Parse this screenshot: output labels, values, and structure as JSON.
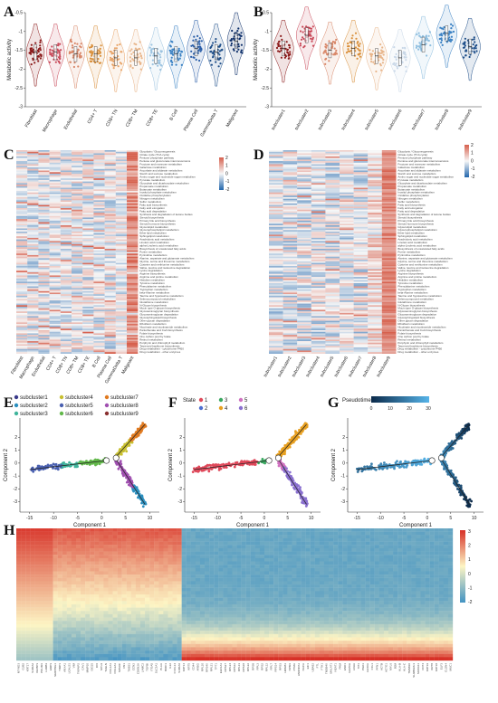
{
  "colors": {
    "neg": "#2166ac",
    "mid": "#f7f7f7",
    "pos": "#d6604d",
    "hneg": "#4393c3",
    "hmid": "#fdf5c4",
    "hpos": "#d73027"
  },
  "chart_data": [
    {
      "panel": "A",
      "type": "violin",
      "ylabel": "Metabolic activity",
      "ylim": [
        -3,
        -0.5
      ],
      "yticks": [
        -3,
        -2.5,
        -2,
        -1.5,
        -1,
        -0.5
      ],
      "categories": [
        "Fibroblast",
        "Macrophage",
        "Endothelial",
        "CD4+ T",
        "CD8+ TN",
        "CD8+ TM",
        "CD8+ TE",
        "B Cell",
        "Plasma Cell",
        "GammaDelta T",
        "Malignant"
      ],
      "colors": [
        "#8b1a1a",
        "#c94a5a",
        "#d9886a",
        "#d98f3a",
        "#e8a56a",
        "#e8b58a",
        "#9cc3e0",
        "#3b82c4",
        "#2a5ea8",
        "#1f4f8a",
        "#0d2f6a"
      ],
      "medians": [
        -1.55,
        -1.55,
        -1.6,
        -1.6,
        -1.7,
        -1.7,
        -1.65,
        -1.6,
        -1.45,
        -1.55,
        -1.25
      ]
    },
    {
      "panel": "B",
      "type": "violin",
      "ylabel": "Metabolic activity",
      "ylim": [
        -3,
        -0.5
      ],
      "yticks": [
        -3,
        -2.5,
        -2,
        -1.5,
        -1,
        -0.5
      ],
      "categories": [
        "subcluster1",
        "subcluster2",
        "subcluster3",
        "subcluster4",
        "subcluster5",
        "subcluster6",
        "subcluster7",
        "subcluster8",
        "subcluster9"
      ],
      "colors": [
        "#8b1a1a",
        "#c94a5a",
        "#d9886a",
        "#d98f3a",
        "#e8b58a",
        "#c9d8e8",
        "#8fbfe0",
        "#3b82c4",
        "#1f4f8a"
      ],
      "medians": [
        -1.45,
        -1.1,
        -1.5,
        -1.45,
        -1.65,
        -1.7,
        -1.35,
        -1.05,
        -1.4
      ]
    },
    {
      "panel": "C",
      "type": "heatmap",
      "columns": [
        "Fibroblast",
        "Macrophage",
        "Endothelial",
        "CD4+ T",
        "CD8+ TN",
        "CD8+ TM",
        "CD8+ TE",
        "B Cell",
        "Plasma Cell",
        "GammaDelta T",
        "Malignant"
      ],
      "scale": [
        -2,
        -1,
        0,
        1,
        2
      ],
      "rows": [
        "Glycolysis / Gluconeogenesis",
        "Citrate cycle (TCA cycle)",
        "Pentose phosphate pathway",
        "Pentose and glucuronate interconversions",
        "Fructose and mannose metabolism",
        "Galactose metabolism",
        "Ascorbate and aldarate metabolism",
        "Starch and sucrose metabolism",
        "Amino sugar and nucleotide sugar metabolism",
        "Pyruvate metabolism",
        "Glyoxylate and dicarboxylate metabolism",
        "Propanoate metabolism",
        "Butanoate metabolism",
        "Inositol phosphate metabolism",
        "Oxidative phosphorylation",
        "Nitrogen metabolism",
        "Sulfur metabolism",
        "Fatty acid biosynthesis",
        "Fatty acid elongation",
        "Fatty acid degradation",
        "Synthesis and degradation of ketone bodies",
        "Steroid biosynthesis",
        "Primary bile acid biosynthesis",
        "Steroid hormone biosynthesis",
        "Glycerolipid metabolism",
        "Glycerophospholipid metabolism",
        "Ether lipid metabolism",
        "Sphingolipid metabolism",
        "Arachidonic acid metabolism",
        "Linoleic acid metabolism",
        "alpha-Linolenic acid metabolism",
        "Biosynthesis of unsaturated fatty acids",
        "Purine metabolism",
        "Pyrimidine metabolism",
        "Alanine, aspartate and glutamate metabolism",
        "Glycine, serine and threonine metabolism",
        "Cysteine and methionine metabolism",
        "Valine, leucine and isoleucine degradation",
        "Lysine degradation",
        "Arginine biosynthesis",
        "Arginine and proline metabolism",
        "Histidine metabolism",
        "Tyrosine metabolism",
        "Phenylalanine metabolism",
        "Tryptophan metabolism",
        "beta-Alanine metabolism",
        "Taurine and hypotaurine metabolism",
        "Selenocompound metabolism",
        "Glutathione metabolism",
        "N-Glycan biosynthesis",
        "Mucin type O-glycan biosynthesis",
        "Glycosaminoglycan biosynthesis",
        "Glycosaminoglycan degradation",
        "Glycosphingolipid biosynthesis",
        "Other glycan degradation",
        "Riboflavin metabolism",
        "Nicotinate and nicotinamide metabolism",
        "Pantothenate and CoA biosynthesis",
        "Folate biosynthesis",
        "One carbon pool by folate",
        "Retinol metabolism",
        "Porphyrin and chlorophyll metabolism",
        "Terpenoid backbone biosynthesis",
        "Drug metabolism - cytochrome P450",
        "Drug metabolism - other enzymes"
      ],
      "values": [
        [
          0.2,
          -0.6,
          0.1,
          -0.4,
          -0.3,
          -0.5,
          0.0,
          -0.2,
          0.4,
          -0.3,
          1.9
        ],
        [
          -0.4,
          0.3,
          -0.5,
          0.1,
          -0.2,
          -0.1,
          -0.6,
          0.0,
          0.5,
          -0.3,
          1.6
        ],
        [
          0.5,
          -0.2,
          0.4,
          -0.6,
          0.2,
          -0.4,
          -0.1,
          0.3,
          -0.5,
          -0.2,
          1.4
        ],
        [
          -0.1,
          -0.5,
          0.3,
          -0.2,
          -0.6,
          0.1,
          -0.3,
          -0.4,
          0.6,
          0.2,
          1.2
        ],
        [
          0.6,
          -0.3,
          -0.2,
          -0.4,
          0.0,
          -0.5,
          -0.6,
          0.2,
          -0.3,
          -0.1,
          1.7
        ],
        [
          -0.3,
          0.4,
          -0.6,
          0.2,
          -0.4,
          -0.2,
          0.1,
          -0.5,
          0.3,
          -0.6,
          1.5
        ],
        [
          0.3,
          -0.6,
          0.5,
          -0.3,
          -0.1,
          0.2,
          -0.4,
          -0.2,
          -0.5,
          0.0,
          1.3
        ],
        [
          -0.5,
          0.2,
          0.0,
          -0.6,
          0.3,
          -0.3,
          -0.2,
          0.4,
          0.1,
          -0.4,
          1.8
        ],
        [
          0.1,
          -0.1,
          -0.4,
          0.4,
          -0.5,
          -0.6,
          0.2,
          -0.3,
          0.6,
          -0.2,
          1.1
        ]
      ]
    },
    {
      "panel": "D",
      "type": "heatmap",
      "columns": [
        "subcluster1",
        "subcluster2",
        "subcluster3",
        "subcluster4",
        "subcluster5",
        "subcluster6",
        "subcluster7",
        "subcluster8",
        "subcluster9"
      ],
      "scale": [
        -2,
        -1,
        0,
        1,
        2
      ]
    },
    {
      "panel": "E",
      "type": "scatter",
      "xlabel": "Component 1",
      "ylabel": "Component 2",
      "xticks": [
        -15,
        -10,
        -5,
        0,
        5,
        10
      ],
      "yticks": [
        -3,
        -2,
        -1,
        0,
        1,
        2
      ],
      "legend": [
        "subcluster1",
        "subcluster2",
        "subcluster3",
        "subcluster4",
        "subcluster5",
        "subcluster6",
        "subcluster7",
        "subcluster8",
        "subcluster9"
      ],
      "legend_colors": [
        "#3a3a8a",
        "#2b8fbf",
        "#3fb49b",
        "#c8c030",
        "#4a60b0",
        "#62b84a",
        "#e07a20",
        "#a050b0",
        "#8a3030"
      ]
    },
    {
      "panel": "F",
      "type": "scatter",
      "xlabel": "Component 1",
      "ylabel": "Component 2",
      "xticks": [
        -15,
        -10,
        -5,
        0,
        5,
        10
      ],
      "yticks": [
        -3,
        -2,
        -1,
        0,
        1,
        2
      ],
      "legend_title": "State",
      "legend": [
        "1",
        "2",
        "3",
        "4",
        "5",
        "6"
      ],
      "legend_colors": [
        "#e0485a",
        "#4f6fd0",
        "#3aa860",
        "#e8a020",
        "#d070c0",
        "#8a70d0"
      ]
    },
    {
      "panel": "G",
      "type": "scatter",
      "xlabel": "Component 1",
      "ylabel": "Component 2",
      "xticks": [
        -15,
        -10,
        -5,
        0,
        5,
        10
      ],
      "yticks": [
        -3,
        -2,
        -1,
        0,
        1,
        2
      ],
      "legend_title": "Pseudotime",
      "colorbar_ticks": [
        0,
        10,
        20,
        30
      ]
    },
    {
      "panel": "H",
      "type": "heatmap",
      "scale": [
        -2,
        -1,
        0,
        1,
        2,
        3
      ],
      "genes": [
        "MT-ND3",
        "GJB2",
        "KRT17",
        "S100A2",
        "IGFBP3",
        "PDLIM1",
        "LAMB3",
        "EMP3",
        "SERPINE1",
        "TIMP1",
        "ANXA1",
        "LGALS1",
        "VIM",
        "TNFAIP2",
        "CAV1",
        "MMP10",
        "ISG15",
        "IFI6",
        "MYL9",
        "TAGLN",
        "COL1A1",
        "COL3A1",
        "SPARC",
        "FN1",
        "THBS1",
        "CCN2",
        "CDKN2A",
        "LAMC2",
        "TGFBI",
        "ITGA5",
        "SLC2A1",
        "PLAU",
        "BIRC3",
        "IL32",
        "CXCL14",
        "S100A6",
        "KRT14",
        "KRT5",
        "CD44",
        "AREG",
        "RPL10",
        "RPS4X",
        "RPL31",
        "TPT1",
        "EEF1A1",
        "RPS27",
        "RPL34",
        "RPS12",
        "RPL13",
        "RPS18",
        "RPL32",
        "RPS8",
        "RPL3",
        "RPS2",
        "RPL12",
        "RPL7",
        "RPS14",
        "RPS3",
        "HMGB1",
        "NPM1",
        "PTMA",
        "HNRNPA1",
        "NACA",
        "EIF1",
        "UBA52",
        "FTL",
        "FTH1",
        "TMSB4X",
        "MALAT1",
        "NEAT1",
        "PKM",
        "ENO1",
        "GAPDH",
        "LDHA",
        "TPI1",
        "PGK1",
        "ALDOA",
        "CFL1",
        "PFN1",
        "ACTB",
        "ACTG1",
        "MYL6",
        "B2M",
        "HLA-B",
        "HLA-C",
        "TMSB10",
        "SH3BGRL3",
        "S100A11",
        "CD74",
        "KRT19",
        "KRT8",
        "KRT18",
        "ELF3",
        "CLDN4",
        "MUC1"
      ]
    }
  ]
}
